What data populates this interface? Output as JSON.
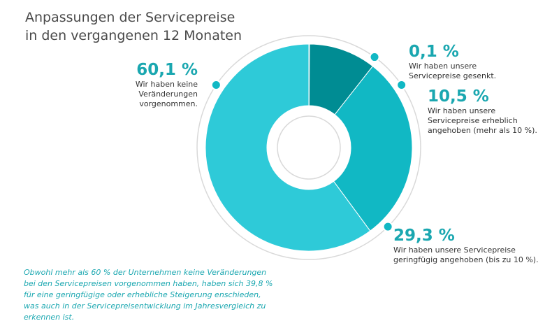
{
  "header": {
    "title_line1": "Anpassungen der Servicepreise",
    "title_line2": "in den vergangenen 12 Monaten"
  },
  "colors": {
    "no_change": "#2ecad8",
    "slight_increase": "#11b8c4",
    "significant_increase": "#008c93",
    "decrease": "#0f7c82",
    "outline": "#d9d9d9",
    "label_accent": "#1aa7b0"
  },
  "chart_data": {
    "type": "pie",
    "donut": true,
    "title": "Anpassungen der Servicepreise in den vergangenen 12 Monaten",
    "slices": [
      {
        "pct_label": "0,1 %",
        "value": 0.1,
        "desc": "Wir haben unsere\nServicepreise gesenkt.",
        "color": "#0f7c82"
      },
      {
        "pct_label": "10,5 %",
        "value": 10.5,
        "desc": "Wir haben unsere\nServicepreise erheblich\nangehoben (mehr als 10 %).",
        "color": "#008c93"
      },
      {
        "pct_label": "29,3 %",
        "value": 29.3,
        "desc": "Wir haben unsere Servicepreise\ngeringfügig angehoben (bis zu 10 %).",
        "color": "#11b8c4"
      },
      {
        "pct_label": "60,1 %",
        "value": 60.1,
        "desc": "Wir haben keine\nVeränderungen\nvorgenommen.",
        "color": "#2ecad8"
      }
    ]
  },
  "footnote": "Obwohl mehr als 60 % der Unternehmen keine Veränderungen bei den Servicepreisen vorgenommen haben, haben sich 39,8 % für eine geringfügige oder erhebliche Steigerung enschieden, was auch in der Servicepreisentwicklung im Jahresvergleich zu erkennen ist."
}
